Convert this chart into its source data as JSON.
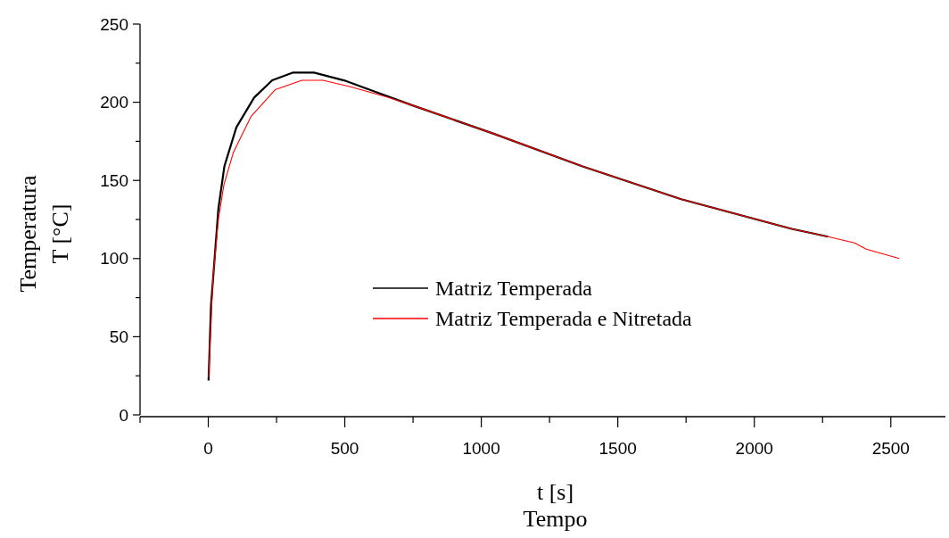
{
  "chart_data": {
    "type": "line",
    "xlabel": "t [s]\nTempo",
    "ylabel": "Temperatura\nT [°C]",
    "xlim": [
      -250,
      2700
    ],
    "ylim": [
      0,
      250
    ],
    "xticks": [
      {
        "value": -250,
        "label": null
      },
      0,
      {
        "value": 250,
        "label": null
      },
      500,
      {
        "value": 750,
        "label": null
      },
      1000,
      {
        "value": 1250,
        "label": null
      },
      1500,
      {
        "value": 1750,
        "label": null
      },
      2000,
      {
        "value": 2250,
        "label": null
      },
      2500
    ],
    "yticks": [
      0,
      {
        "value": 25,
        "label": null
      },
      50,
      {
        "value": 75,
        "label": null
      },
      100,
      {
        "value": 125,
        "label": null
      },
      150,
      {
        "value": 175,
        "label": null
      },
      200,
      {
        "value": 225,
        "label": null
      },
      250
    ],
    "grid": false,
    "legend": "center",
    "marker": "none",
    "line_style": "solid",
    "series": [
      {
        "name": "Matriz Temperada",
        "color": "#000000",
        "x": [
          1,
          10,
          24,
          37,
          59,
          103,
          168,
          234,
          311,
          387,
          497,
          606,
          748,
          1043,
          1371,
          1732,
          2137,
          2270
        ],
        "values": [
          22,
          70,
          102,
          132,
          159,
          184,
          203,
          214,
          219,
          219,
          214,
          207,
          198,
          180,
          159,
          138,
          119,
          114
        ]
      },
      {
        "name": "Matriz Temperada e Nitretada",
        "color": "#ff0000",
        "x": [
          1,
          17,
          37,
          57,
          92,
          157,
          245,
          343,
          420,
          518,
          660,
          748,
          1043,
          1371,
          1732,
          2137,
          2270,
          2367,
          2410,
          2531
        ],
        "values": [
          24,
          87,
          125,
          147,
          168,
          191,
          208,
          214,
          214,
          210,
          203,
          198,
          180,
          159,
          138,
          119,
          114,
          110,
          106,
          100
        ]
      }
    ]
  }
}
